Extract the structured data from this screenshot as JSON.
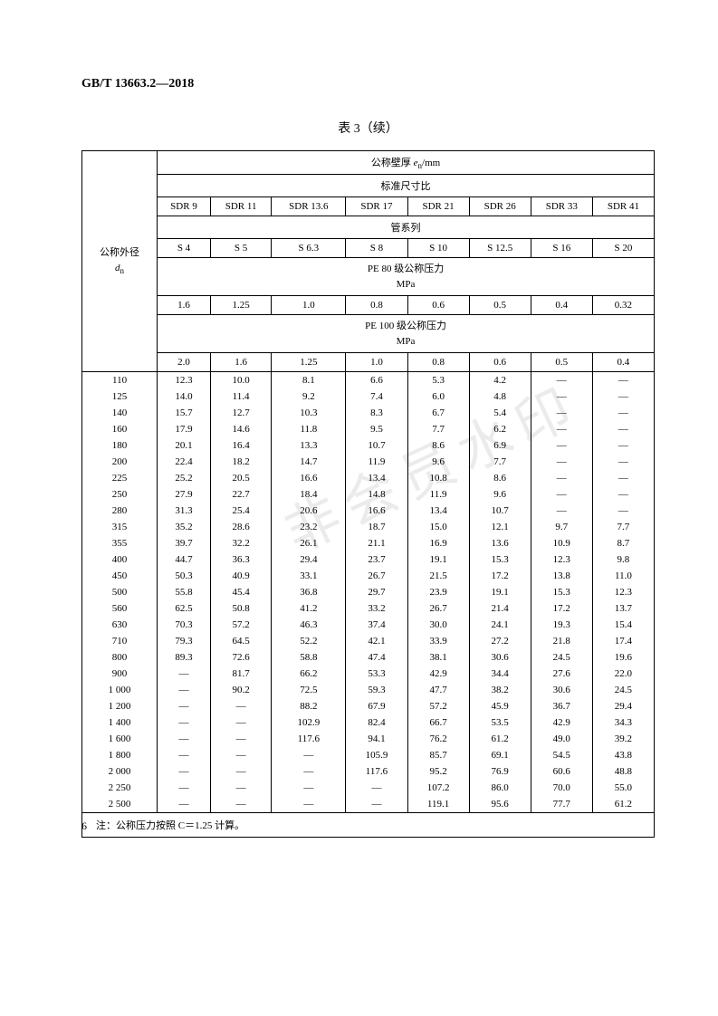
{
  "header": "GB/T 13663.2—2018",
  "title": "表 3（续）",
  "pageNum": "6",
  "watermark": "非会员水印",
  "th": {
    "rowLabel1": "公称外径",
    "rowLabel2": "dₙ",
    "wallThickness": "公称壁厚 eₙ/mm",
    "sdr_label": "标准尺寸比",
    "sdr": [
      "SDR 9",
      "SDR 11",
      "SDR 13.6",
      "SDR 17",
      "SDR 21",
      "SDR 26",
      "SDR 33",
      "SDR 41"
    ],
    "series_label": "管系列",
    "series": [
      "S 4",
      "S 5",
      "S 6.3",
      "S 8",
      "S 10",
      "S 12.5",
      "S 16",
      "S 20"
    ],
    "pe80_label": "PE 80 级公称压力",
    "mpa": "MPa",
    "pe80": [
      "1.6",
      "1.25",
      "1.0",
      "0.8",
      "0.6",
      "0.5",
      "0.4",
      "0.32"
    ],
    "pe100_label": "PE 100 级公称压力",
    "pe100": [
      "2.0",
      "1.6",
      "1.25",
      "1.0",
      "0.8",
      "0.6",
      "0.5",
      "0.4"
    ]
  },
  "rows": [
    [
      "110",
      "12.3",
      "10.0",
      "8.1",
      "6.6",
      "5.3",
      "4.2",
      "—",
      "—"
    ],
    [
      "125",
      "14.0",
      "11.4",
      "9.2",
      "7.4",
      "6.0",
      "4.8",
      "—",
      "—"
    ],
    [
      "140",
      "15.7",
      "12.7",
      "10.3",
      "8.3",
      "6.7",
      "5.4",
      "—",
      "—"
    ],
    [
      "160",
      "17.9",
      "14.6",
      "11.8",
      "9.5",
      "7.7",
      "6.2",
      "—",
      "—"
    ],
    [
      "180",
      "20.1",
      "16.4",
      "13.3",
      "10.7",
      "8.6",
      "6.9",
      "—",
      "—"
    ],
    [
      "200",
      "22.4",
      "18.2",
      "14.7",
      "11.9",
      "9.6",
      "7.7",
      "—",
      "—"
    ],
    [
      "225",
      "25.2",
      "20.5",
      "16.6",
      "13.4",
      "10.8",
      "8.6",
      "—",
      "—"
    ],
    [
      "250",
      "27.9",
      "22.7",
      "18.4",
      "14.8",
      "11.9",
      "9.6",
      "—",
      "—"
    ],
    [
      "280",
      "31.3",
      "25.4",
      "20.6",
      "16.6",
      "13.4",
      "10.7",
      "—",
      "—"
    ],
    [
      "315",
      "35.2",
      "28.6",
      "23.2",
      "18.7",
      "15.0",
      "12.1",
      "9.7",
      "7.7"
    ],
    [
      "355",
      "39.7",
      "32.2",
      "26.1",
      "21.1",
      "16.9",
      "13.6",
      "10.9",
      "8.7"
    ],
    [
      "400",
      "44.7",
      "36.3",
      "29.4",
      "23.7",
      "19.1",
      "15.3",
      "12.3",
      "9.8"
    ],
    [
      "450",
      "50.3",
      "40.9",
      "33.1",
      "26.7",
      "21.5",
      "17.2",
      "13.8",
      "11.0"
    ],
    [
      "500",
      "55.8",
      "45.4",
      "36.8",
      "29.7",
      "23.9",
      "19.1",
      "15.3",
      "12.3"
    ],
    [
      "560",
      "62.5",
      "50.8",
      "41.2",
      "33.2",
      "26.7",
      "21.4",
      "17.2",
      "13.7"
    ],
    [
      "630",
      "70.3",
      "57.2",
      "46.3",
      "37.4",
      "30.0",
      "24.1",
      "19.3",
      "15.4"
    ],
    [
      "710",
      "79.3",
      "64.5",
      "52.2",
      "42.1",
      "33.9",
      "27.2",
      "21.8",
      "17.4"
    ],
    [
      "800",
      "89.3",
      "72.6",
      "58.8",
      "47.4",
      "38.1",
      "30.6",
      "24.5",
      "19.6"
    ],
    [
      "900",
      "—",
      "81.7",
      "66.2",
      "53.3",
      "42.9",
      "34.4",
      "27.6",
      "22.0"
    ],
    [
      "1 000",
      "—",
      "90.2",
      "72.5",
      "59.3",
      "47.7",
      "38.2",
      "30.6",
      "24.5"
    ],
    [
      "1 200",
      "—",
      "—",
      "88.2",
      "67.9",
      "57.2",
      "45.9",
      "36.7",
      "29.4"
    ],
    [
      "1 400",
      "—",
      "—",
      "102.9",
      "82.4",
      "66.7",
      "53.5",
      "42.9",
      "34.3"
    ],
    [
      "1 600",
      "—",
      "—",
      "117.6",
      "94.1",
      "76.2",
      "61.2",
      "49.0",
      "39.2"
    ],
    [
      "1 800",
      "—",
      "—",
      "—",
      "105.9",
      "85.7",
      "69.1",
      "54.5",
      "43.8"
    ],
    [
      "2 000",
      "—",
      "—",
      "—",
      "117.6",
      "95.2",
      "76.9",
      "60.6",
      "48.8"
    ],
    [
      "2 250",
      "—",
      "—",
      "—",
      "—",
      "107.2",
      "86.0",
      "70.0",
      "55.0"
    ],
    [
      "2 500",
      "—",
      "—",
      "—",
      "—",
      "119.1",
      "95.6",
      "77.7",
      "61.2"
    ]
  ],
  "note": "注：公称压力按照 C＝1.25 计算。"
}
